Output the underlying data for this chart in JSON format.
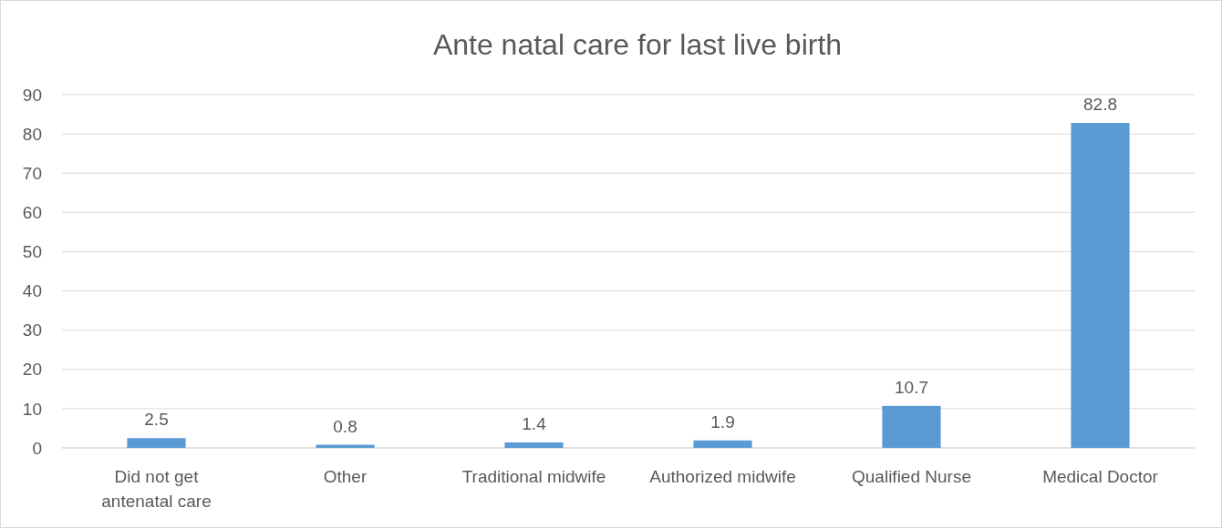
{
  "chart_data": {
    "type": "bar",
    "title": "Ante natal care for last live birth",
    "categories": [
      "Did not get antenatal care",
      "Other",
      "Traditional midwife",
      "Authorized midwife",
      "Qualified Nurse",
      "Medical Doctor"
    ],
    "values": [
      2.5,
      0.8,
      1.4,
      1.9,
      10.7,
      82.8
    ],
    "color": "#5b9bd5",
    "ylim": [
      0,
      90
    ],
    "yticks": [
      0,
      10,
      20,
      30,
      40,
      50,
      60,
      70,
      80,
      90
    ],
    "grid": "y",
    "data_labels": true
  }
}
